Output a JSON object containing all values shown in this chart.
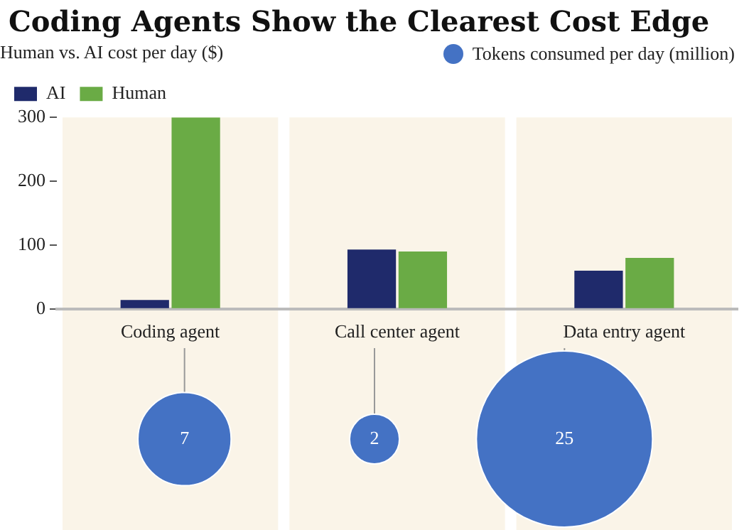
{
  "chart_data": [
    {
      "type": "bar",
      "title": "Coding Agents Show the Clearest Cost Edge",
      "subtitle": "Human vs. AI cost per day ($)",
      "categories": [
        "Coding agent",
        "Call center agent",
        "Data entry agent"
      ],
      "series": [
        {
          "name": "AI",
          "color": "#1f2a6b",
          "values": [
            14,
            93,
            60
          ]
        },
        {
          "name": "Human",
          "color": "#6aab45",
          "values": [
            300,
            90,
            80
          ]
        }
      ],
      "ylim": [
        0,
        300
      ],
      "yticks": [
        0,
        100,
        200,
        300
      ],
      "grid": false,
      "legend": "top left",
      "bands": [
        {
          "axis": "x",
          "from": "Coding agent",
          "to": "Coding agent",
          "color": "#faf4e8"
        },
        {
          "axis": "x",
          "from": "Call center agent",
          "to": "Call center agent",
          "color": "#faf4e8"
        },
        {
          "axis": "x",
          "from": "Data entry agent",
          "to": "Data entry agent",
          "color": "#faf4e8"
        }
      ]
    },
    {
      "type": "other",
      "series": [
        {
          "name": "Tokens consumed per day (million)",
          "color": "#4472c4",
          "values": [
            7,
            2,
            25
          ]
        }
      ],
      "data_labels": true,
      "legend": "top right"
    }
  ]
}
